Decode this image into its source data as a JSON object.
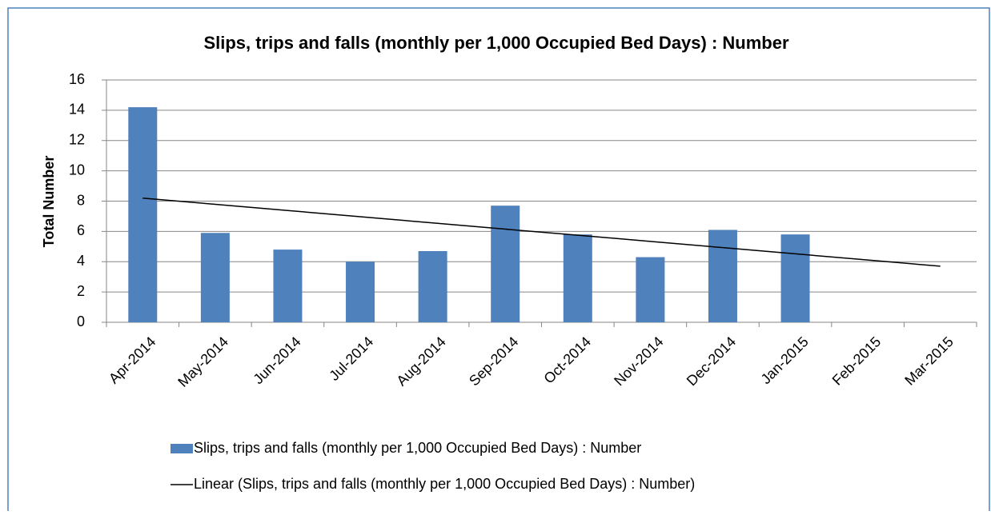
{
  "chart_data": {
    "type": "bar",
    "title": "Slips, trips and falls (monthly per 1,000 Occupied Bed Days) : Number",
    "y_label": "Total Number",
    "categories": [
      "Apr-2014",
      "May-2014",
      "Jun-2014",
      "Jul-2014",
      "Aug-2014",
      "Sep-2014",
      "Oct-2014",
      "Nov-2014",
      "Dec-2014",
      "Jan-2015",
      "Feb-2015",
      "Mar-2015"
    ],
    "series": [
      {
        "name": "Slips, trips and falls (monthly per 1,000 Occupied Bed Days) : Number",
        "type": "bar",
        "color": "#4f81bd",
        "values": [
          14.2,
          5.9,
          4.8,
          4.0,
          4.7,
          7.7,
          5.8,
          4.3,
          6.1,
          5.8,
          null,
          null
        ]
      },
      {
        "name": "Linear (Slips, trips and falls (monthly per 1,000 Occupied Bed Days) : Number)",
        "type": "line",
        "color": "#000000",
        "values": [
          8.2,
          7.79,
          7.38,
          6.97,
          6.56,
          6.15,
          5.75,
          5.34,
          4.93,
          4.52,
          4.11,
          3.7
        ]
      }
    ],
    "ylim": [
      0,
      16
    ],
    "yticks": [
      0,
      2,
      4,
      6,
      8,
      10,
      12,
      14,
      16
    ],
    "grid": true,
    "legend": "bottom"
  }
}
